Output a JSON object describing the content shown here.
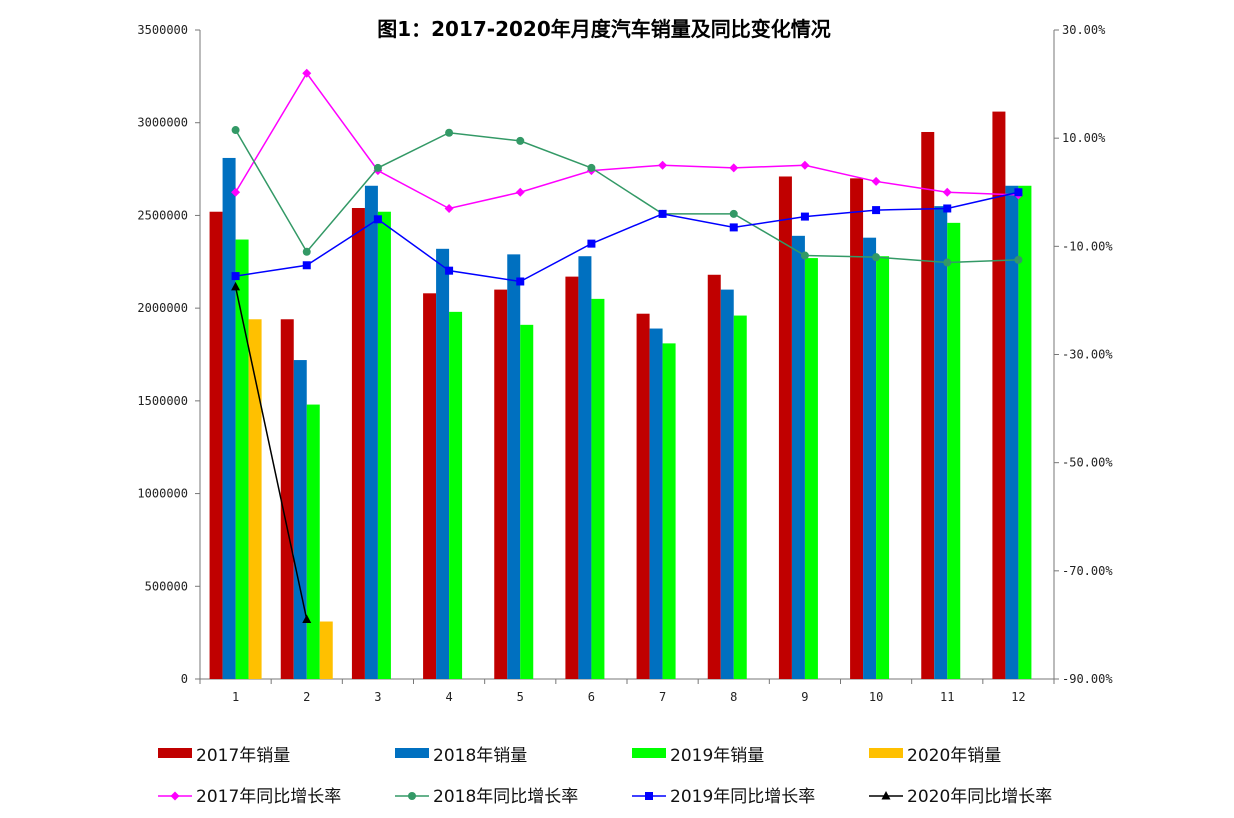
{
  "chart_data": {
    "type": "bar",
    "title": "图1：2017-2020年月度汽车销量及同比变化情况",
    "categories": [
      "1",
      "2",
      "3",
      "4",
      "5",
      "6",
      "7",
      "8",
      "9",
      "10",
      "11",
      "12"
    ],
    "left_axis": {
      "ylim": [
        0,
        3500000
      ],
      "ticks": [
        "0",
        "500000",
        "1000000",
        "1500000",
        "2000000",
        "2500000",
        "3000000",
        "3500000"
      ]
    },
    "right_axis": {
      "ylim": [
        -0.9,
        0.3
      ],
      "ticks": [
        "-90.00%",
        "-70.00%",
        "-50.00%",
        "-30.00%",
        "-10.00%",
        "10.00%",
        "30.00%"
      ]
    },
    "legend_placement": "bottom",
    "bar_series": [
      {
        "name": "2017年销量",
        "color": "#c00000",
        "values": [
          2520000,
          1940000,
          2540000,
          2080000,
          2100000,
          2170000,
          1970000,
          2180000,
          2710000,
          2700000,
          2950000,
          3060000
        ]
      },
      {
        "name": "2018年销量",
        "color": "#0070c0",
        "values": [
          2810000,
          1720000,
          2660000,
          2320000,
          2290000,
          2280000,
          1890000,
          2100000,
          2390000,
          2380000,
          2550000,
          2660000
        ]
      },
      {
        "name": "2019年销量",
        "color": "#00ff00",
        "values": [
          2370000,
          1480000,
          2520000,
          1980000,
          1910000,
          2050000,
          1810000,
          1960000,
          2270000,
          2280000,
          2460000,
          2660000
        ]
      },
      {
        "name": "2020年销量",
        "color": "#ffc000",
        "values": [
          1940000,
          310000,
          null,
          null,
          null,
          null,
          null,
          null,
          null,
          null,
          null,
          null
        ]
      }
    ],
    "line_series": [
      {
        "name": "2017年同比增长率",
        "color": "#ff00ff",
        "marker": "diamond",
        "values": [
          0.0,
          0.22,
          0.04,
          -0.03,
          0.0,
          0.04,
          0.05,
          0.045,
          0.05,
          0.02,
          0.0,
          -0.005
        ]
      },
      {
        "name": "2018年同比增长率",
        "color": "#339966",
        "marker": "circle",
        "values": [
          0.115,
          -0.11,
          0.045,
          0.11,
          0.095,
          0.045,
          -0.04,
          -0.04,
          -0.117,
          -0.12,
          -0.13,
          -0.125
        ]
      },
      {
        "name": "2019年同比增长率",
        "color": "#0000ff",
        "marker": "square",
        "values": [
          -0.155,
          -0.135,
          -0.05,
          -0.145,
          -0.165,
          -0.095,
          -0.04,
          -0.065,
          -0.045,
          -0.033,
          -0.03,
          0.0
        ]
      },
      {
        "name": "2020年同比增长率",
        "color": "#000000",
        "marker": "triangle",
        "values": [
          -0.175,
          -0.79,
          null,
          null,
          null,
          null,
          null,
          null,
          null,
          null,
          null,
          null
        ]
      }
    ]
  }
}
